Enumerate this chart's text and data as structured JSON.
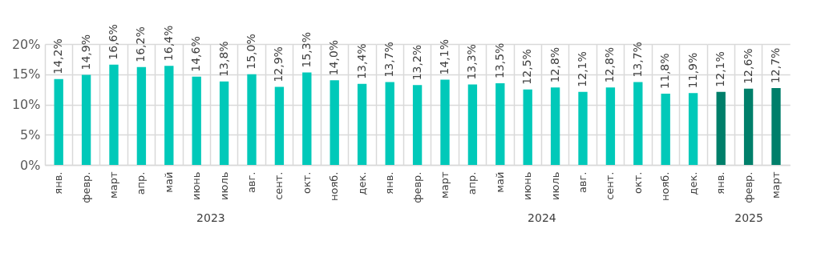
{
  "chart_data": [
    {
      "type": "bar",
      "xlabel": "2023",
      "categories": [
        "янв.",
        "февр.",
        "март",
        "апр.",
        "май",
        "июнь",
        "июль",
        "авг.",
        "сент.",
        "окт.",
        "нояб.",
        "дек."
      ],
      "values": [
        14.2,
        14.9,
        16.6,
        16.2,
        16.4,
        14.6,
        13.8,
        15.0,
        12.9,
        15.3,
        14.0,
        13.4
      ],
      "value_labels": [
        "14,2%",
        "14,9%",
        "16,6%",
        "16,2%",
        "16,4%",
        "14,6%",
        "13,8%",
        "15,0%",
        "12,9%",
        "15,3%",
        "14,0%",
        "13,4%"
      ],
      "color": "#00c9b9",
      "ylim": [
        0,
        20
      ],
      "yticks": [
        {
          "value": 0,
          "label": "0%"
        },
        {
          "value": 5,
          "label": "5%"
        },
        {
          "value": 10,
          "label": "10%"
        },
        {
          "value": 15,
          "label": "15%"
        },
        {
          "value": 20,
          "label": "20%"
        }
      ],
      "grid": true
    },
    {
      "type": "bar",
      "xlabel": "2024",
      "categories": [
        "янв.",
        "февр.",
        "март",
        "апр.",
        "май",
        "июнь",
        "июль",
        "авг.",
        "сент.",
        "окт.",
        "нояб.",
        "дек."
      ],
      "values": [
        13.7,
        13.2,
        14.1,
        13.3,
        13.5,
        12.5,
        12.8,
        12.1,
        12.8,
        13.7,
        11.8,
        11.9
      ],
      "value_labels": [
        "13,7%",
        "13,2%",
        "14,1%",
        "13,3%",
        "13,5%",
        "12,5%",
        "12,8%",
        "12,1%",
        "12,8%",
        "13,7%",
        "11,8%",
        "11,9%"
      ],
      "color": "#00c9b9",
      "ylim": [
        0,
        20
      ],
      "yticks": [
        {
          "value": 0,
          "label": null
        },
        {
          "value": 5,
          "label": null
        },
        {
          "value": 10,
          "label": null
        },
        {
          "value": 15,
          "label": null
        },
        {
          "value": 20,
          "label": null
        }
      ],
      "grid": true,
      "tick_labels": "x"
    },
    {
      "type": "bar",
      "xlabel": "2025",
      "categories": [
        "янв.",
        "февр.",
        "март"
      ],
      "values": [
        12.1,
        12.6,
        12.7
      ],
      "value_labels": [
        "12,1%",
        "12,6%",
        "12,7%"
      ],
      "color": "#007f6a",
      "ylim": [
        0,
        20
      ],
      "yticks": [
        {
          "value": 0,
          "label": null
        },
        {
          "value": 5,
          "label": null
        },
        {
          "value": 10,
          "label": null
        },
        {
          "value": 15,
          "label": null
        },
        {
          "value": 20,
          "label": null
        }
      ],
      "grid": true,
      "tick_labels": "x"
    }
  ]
}
